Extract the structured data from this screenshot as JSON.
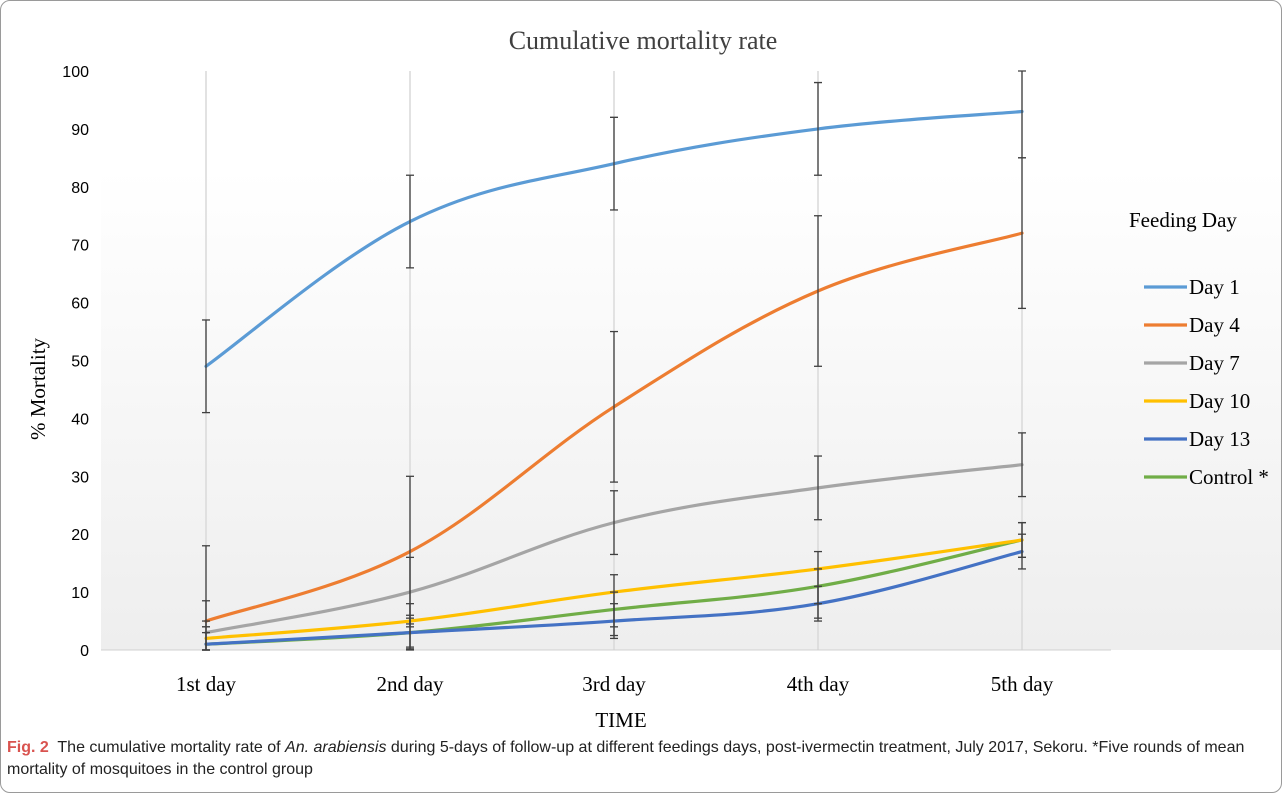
{
  "caption": {
    "label": "Fig. 2",
    "text_before": "The cumulative mortality rate of",
    "species": "An. arabiensis",
    "text_after": "during 5-days of follow-up at different feedings days, post-ivermectin treatment, July 2017, Sekoru. *Five rounds of mean mortality of mosquitoes in the control group"
  },
  "chart_data": {
    "type": "line",
    "title": "Cumulative mortality rate",
    "xlabel": "TIME",
    "ylabel": "% Mortality",
    "categories": [
      "1st day",
      "2nd day",
      "3rd day",
      "4th day",
      "5th day"
    ],
    "ylim": [
      0,
      100
    ],
    "yticks": [
      0,
      10,
      20,
      30,
      40,
      50,
      60,
      70,
      80,
      90,
      100
    ],
    "grid": "vertical",
    "smooth": true,
    "legend": {
      "title": "Feeding Day",
      "position": "right"
    },
    "series": [
      {
        "name": "Day 1",
        "color": "#5b9bd5",
        "values": [
          49,
          74,
          84,
          90,
          93
        ],
        "error_low": [
          41,
          66,
          76,
          82,
          85
        ],
        "error_high": [
          57,
          82,
          92,
          98,
          100
        ]
      },
      {
        "name": "Day 4",
        "color": "#ed7d31",
        "values": [
          5,
          17,
          42,
          62,
          72
        ],
        "error_low": [
          4,
          4.5,
          29,
          49,
          59
        ],
        "error_high": [
          18,
          30,
          55,
          75,
          85
        ]
      },
      {
        "name": "Day 7",
        "color": "#a5a5a5",
        "values": [
          3,
          10,
          22,
          28,
          32
        ],
        "error_low": [
          0,
          4,
          16.5,
          22.5,
          26.5
        ],
        "error_high": [
          8.5,
          16,
          27.5,
          33.5,
          37.5
        ]
      },
      {
        "name": "Day 10",
        "color": "#ffc000",
        "values": [
          2,
          5,
          10,
          14,
          19
        ],
        "error_low": [
          0,
          0,
          2,
          5.5,
          16
        ],
        "error_high": [
          5,
          8,
          13,
          17,
          22
        ]
      },
      {
        "name": "Day 13",
        "color": "#4472c4",
        "values": [
          1,
          3,
          5,
          8,
          17
        ],
        "error_low": [
          0,
          0.2,
          2.5,
          5,
          14
        ],
        "error_high": [
          4,
          6,
          8,
          11,
          20
        ]
      },
      {
        "name": "Control *",
        "color": "#70ad47",
        "values": [
          1,
          3,
          7,
          11,
          19
        ],
        "error_low": [
          0,
          0.5,
          4,
          8,
          16
        ],
        "error_high": [
          3,
          5.5,
          10,
          14,
          22
        ]
      }
    ]
  }
}
